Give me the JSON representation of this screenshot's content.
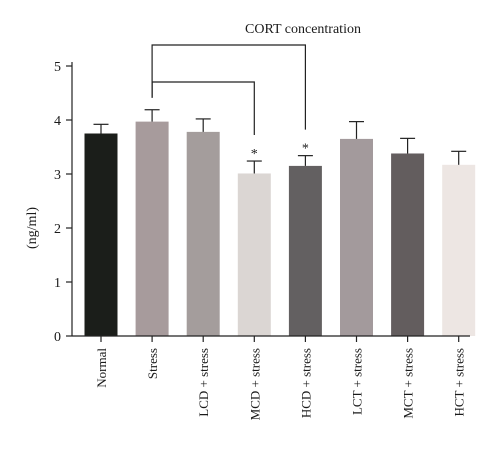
{
  "chart_data": {
    "type": "bar",
    "title": "CORT concentration",
    "ylabel": "(ng/ml)",
    "xlabel": "",
    "ylim": [
      0,
      5
    ],
    "yticks": [
      0,
      1,
      2,
      3,
      4,
      5
    ],
    "grid": false,
    "legend": "none",
    "categories": [
      "Normal",
      "Stress",
      "LCD + stress",
      "MCD + stress",
      "HCD + stress",
      "LCT + stress",
      "MCT + stress",
      "HCT + stress"
    ],
    "values": [
      3.75,
      3.97,
      3.78,
      3.01,
      3.15,
      3.65,
      3.38,
      3.17
    ],
    "errors": [
      0.17,
      0.22,
      0.24,
      0.23,
      0.19,
      0.32,
      0.28,
      0.25
    ],
    "significance": [
      "",
      "",
      "",
      "*",
      "*",
      "",
      "",
      ""
    ],
    "comparisons": [
      {
        "from": "Stress",
        "to": "HCD + stress"
      },
      {
        "from": "Stress",
        "to": "MCD + stress"
      }
    ],
    "bar_colors": [
      "#1b1e1a",
      "#a79b9c",
      "#a49d9c",
      "#dbd6d3",
      "#636061",
      "#a39a9c",
      "#635d5e",
      "#ede6e3"
    ]
  }
}
